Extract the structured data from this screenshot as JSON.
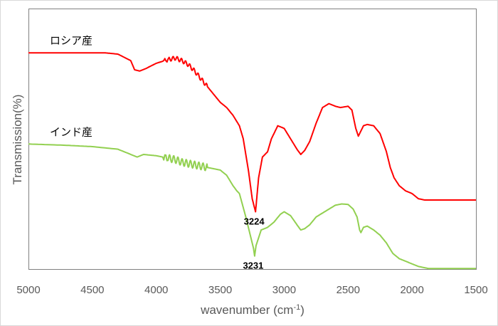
{
  "chart_data": {
    "type": "line",
    "xlabel": "wavenumber (cm",
    "xlabel_sup": "-1",
    "xlabel_end": ")",
    "ylabel": "Transmission(%)",
    "xlim": [
      5000,
      1500
    ],
    "x_reversed": true,
    "xticks": [
      "5000",
      "4500",
      "4000",
      "3500",
      "3000",
      "2500",
      "2000",
      "1500"
    ],
    "ylim": [
      0,
      100
    ],
    "grid": false,
    "series": [
      {
        "name": "ロシア産",
        "color": "#ff0000",
        "x": [
          5000,
          4700,
          4400,
          4300,
          4200,
          4170,
          4130,
          4080,
          4000,
          3900,
          3850,
          3800,
          3750,
          3700,
          3650,
          3600,
          3550,
          3500,
          3450,
          3400,
          3350,
          3320,
          3280,
          3250,
          3224,
          3200,
          3170,
          3130,
          3100,
          3050,
          3000,
          2950,
          2900,
          2870,
          2840,
          2800,
          2750,
          2700,
          2650,
          2600,
          2560,
          2500,
          2470,
          2440,
          2420,
          2400,
          2380,
          2350,
          2300,
          2250,
          2200,
          2170,
          2140,
          2100,
          2050,
          2000,
          1950,
          1900,
          1870,
          1800,
          1700,
          1600,
          1500
        ],
        "values": [
          83,
          83,
          83,
          82.5,
          80,
          76.5,
          76,
          77,
          79,
          80.5,
          81,
          80,
          78.5,
          76,
          73,
          70,
          67,
          64,
          62,
          59,
          55,
          50,
          38,
          27,
          22,
          35,
          43,
          45,
          50,
          55,
          54,
          50,
          46,
          44,
          45.5,
          49,
          56,
          62,
          63.5,
          62.5,
          62,
          62.5,
          61,
          54,
          51,
          53,
          55,
          55.5,
          55,
          52,
          45,
          39,
          35,
          32,
          30,
          29,
          27,
          26.5,
          26.5,
          26.5,
          26.5,
          26.5,
          26.5
        ]
      },
      {
        "name": "インド産",
        "color": "#92d050",
        "x": [
          5000,
          4700,
          4500,
          4300,
          4200,
          4150,
          4100,
          4000,
          3900,
          3850,
          3800,
          3750,
          3700,
          3650,
          3600,
          3550,
          3500,
          3450,
          3400,
          3370,
          3350,
          3300,
          3260,
          3240,
          3231,
          3220,
          3180,
          3130,
          3080,
          3030,
          3000,
          2950,
          2900,
          2870,
          2840,
          2800,
          2750,
          2700,
          2650,
          2600,
          2550,
          2500,
          2460,
          2430,
          2410,
          2400,
          2380,
          2350,
          2300,
          2250,
          2200,
          2150,
          2100,
          2050,
          2000,
          1950,
          1900,
          1870,
          1800,
          1700,
          1600,
          1500
        ],
        "values": [
          48,
          47.5,
          47,
          46,
          44,
          43,
          44,
          43.5,
          42.5,
          42,
          41,
          40.5,
          40,
          39.5,
          39,
          38.5,
          38,
          36,
          32,
          30,
          29,
          20,
          12,
          8,
          5,
          9,
          15,
          16,
          18,
          21,
          22,
          20.5,
          17,
          15,
          15.5,
          17,
          20,
          21.5,
          23,
          24.5,
          25,
          24.8,
          23,
          20,
          15,
          14,
          16,
          16.5,
          15,
          13,
          10,
          6,
          4,
          3,
          2,
          1,
          0.5,
          0.2,
          0.2,
          0.2,
          0.2,
          0.2
        ]
      }
    ],
    "annotations": [
      {
        "text": "3224",
        "x": 3224,
        "series": 0
      },
      {
        "text": "3231",
        "x": 3231,
        "series": 1
      }
    ]
  }
}
